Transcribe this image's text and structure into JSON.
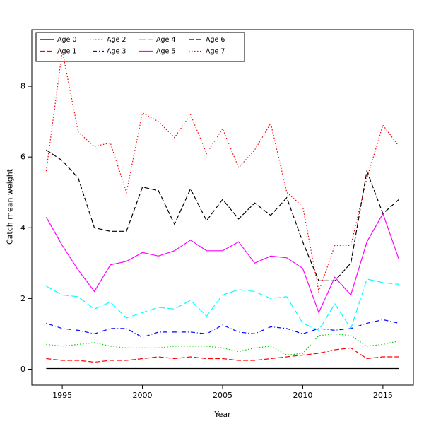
{
  "chart_data": {
    "type": "line",
    "title": "",
    "xlabel": "Year",
    "ylabel": "Catch mean weight",
    "x": [
      1994,
      1995,
      1996,
      1997,
      1998,
      1999,
      2000,
      2001,
      2002,
      2003,
      2004,
      2005,
      2006,
      2007,
      2008,
      2009,
      2010,
      2011,
      2012,
      2013,
      2014,
      2015,
      2016
    ],
    "xticks": [
      1995,
      2000,
      2005,
      2010,
      2015
    ],
    "yticks": [
      0,
      2,
      4,
      6,
      8
    ],
    "xlim": [
      1993.1,
      2016.9
    ],
    "ylim": [
      -0.45,
      9.6
    ],
    "grid": false,
    "legend_position": "top-left",
    "legend_rows": 2,
    "series": [
      {
        "name": "Age 0",
        "color": "#000000",
        "dash": "solid",
        "values": [
          0.02,
          0.02,
          0.02,
          0.02,
          0.02,
          0.02,
          0.02,
          0.02,
          0.02,
          0.02,
          0.02,
          0.02,
          0.02,
          0.02,
          0.02,
          0.02,
          0.02,
          0.02,
          0.02,
          0.02,
          0.02,
          0.02,
          0.02
        ]
      },
      {
        "name": "Age 1",
        "color": "#FF0000",
        "dash": "dashed",
        "values": [
          0.3,
          0.25,
          0.25,
          0.2,
          0.25,
          0.25,
          0.3,
          0.35,
          0.3,
          0.35,
          0.3,
          0.3,
          0.25,
          0.25,
          0.3,
          0.35,
          0.4,
          0.45,
          0.55,
          0.6,
          0.3,
          0.35,
          0.35
        ]
      },
      {
        "name": "Age 2",
        "color": "#00CD00",
        "dash": "dotted",
        "values": [
          0.7,
          0.65,
          0.7,
          0.75,
          0.65,
          0.6,
          0.6,
          0.6,
          0.65,
          0.65,
          0.65,
          0.6,
          0.5,
          0.6,
          0.65,
          0.4,
          0.45,
          0.95,
          1.0,
          0.95,
          0.65,
          0.7,
          0.8
        ]
      },
      {
        "name": "Age 3",
        "color": "#0000FF",
        "dash": "dashdot",
        "values": [
          1.3,
          1.15,
          1.1,
          1.0,
          1.15,
          1.15,
          0.9,
          1.05,
          1.05,
          1.05,
          1.0,
          1.25,
          1.05,
          1.0,
          1.2,
          1.15,
          1.0,
          1.15,
          1.1,
          1.15,
          1.3,
          1.4,
          1.3
        ]
      },
      {
        "name": "Age 4",
        "color": "#00FFFF",
        "dash": "longdash",
        "values": [
          2.35,
          2.1,
          2.05,
          1.7,
          1.9,
          1.45,
          1.6,
          1.75,
          1.7,
          1.95,
          1.5,
          2.1,
          2.25,
          2.2,
          2.0,
          2.05,
          1.3,
          1.1,
          1.85,
          1.15,
          2.55,
          2.45,
          2.4
        ]
      },
      {
        "name": "Age 5",
        "color": "#FF00FF",
        "dash": "solid",
        "values": [
          4.3,
          3.5,
          2.8,
          2.2,
          2.95,
          3.05,
          3.3,
          3.2,
          3.35,
          3.65,
          3.35,
          3.35,
          3.6,
          3.0,
          3.2,
          3.15,
          2.85,
          1.6,
          2.6,
          2.1,
          3.6,
          4.4,
          3.1
        ]
      },
      {
        "name": "Age 6",
        "color": "#000000",
        "dash": "dashed",
        "values": [
          6.2,
          5.9,
          5.4,
          4.0,
          3.9,
          3.9,
          5.15,
          5.05,
          4.1,
          5.1,
          4.2,
          4.8,
          4.25,
          4.7,
          4.35,
          4.85,
          3.6,
          2.5,
          2.5,
          3.0,
          5.6,
          4.4,
          4.8
        ]
      },
      {
        "name": "Age 7",
        "color": "#FF0000",
        "dash": "dotted",
        "values": [
          5.6,
          9.0,
          6.7,
          6.3,
          6.4,
          5.0,
          7.25,
          7.0,
          6.55,
          7.2,
          6.1,
          6.8,
          5.7,
          6.2,
          6.95,
          5.0,
          4.6,
          2.2,
          3.5,
          3.5,
          5.4,
          6.9,
          6.3
        ]
      }
    ]
  }
}
